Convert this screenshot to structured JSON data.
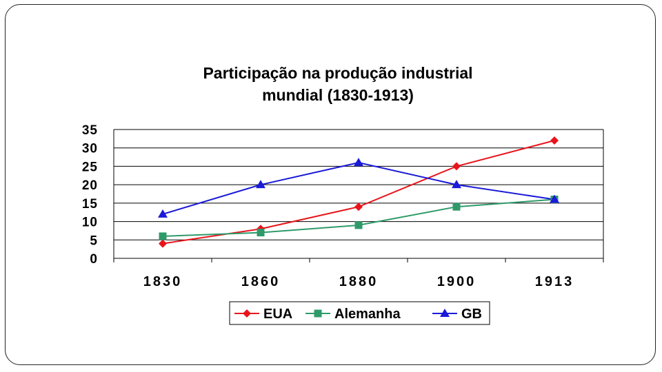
{
  "chart_data": {
    "type": "line",
    "title_line1": "Participação na produção industrial",
    "title_line2": "mundial (1830-1913)",
    "categories": [
      "1830",
      "1860",
      "1880",
      "1900",
      "1913"
    ],
    "ylim": [
      0,
      35
    ],
    "yticks": [
      "0",
      "5",
      "10",
      "15",
      "20",
      "25",
      "30",
      "35"
    ],
    "grid": true,
    "legend_position": "bottom",
    "series": [
      {
        "name": "EUA",
        "values": [
          4,
          8,
          14,
          25,
          32
        ],
        "color": "#e8141b",
        "marker": "diamond"
      },
      {
        "name": "Alemanha",
        "values": [
          6,
          7,
          9,
          14,
          16
        ],
        "color": "#2e9a6a",
        "marker": "square"
      },
      {
        "name": "GB",
        "values": [
          12,
          20,
          26,
          20,
          16
        ],
        "color": "#1a1ad8",
        "marker": "triangle"
      }
    ]
  }
}
